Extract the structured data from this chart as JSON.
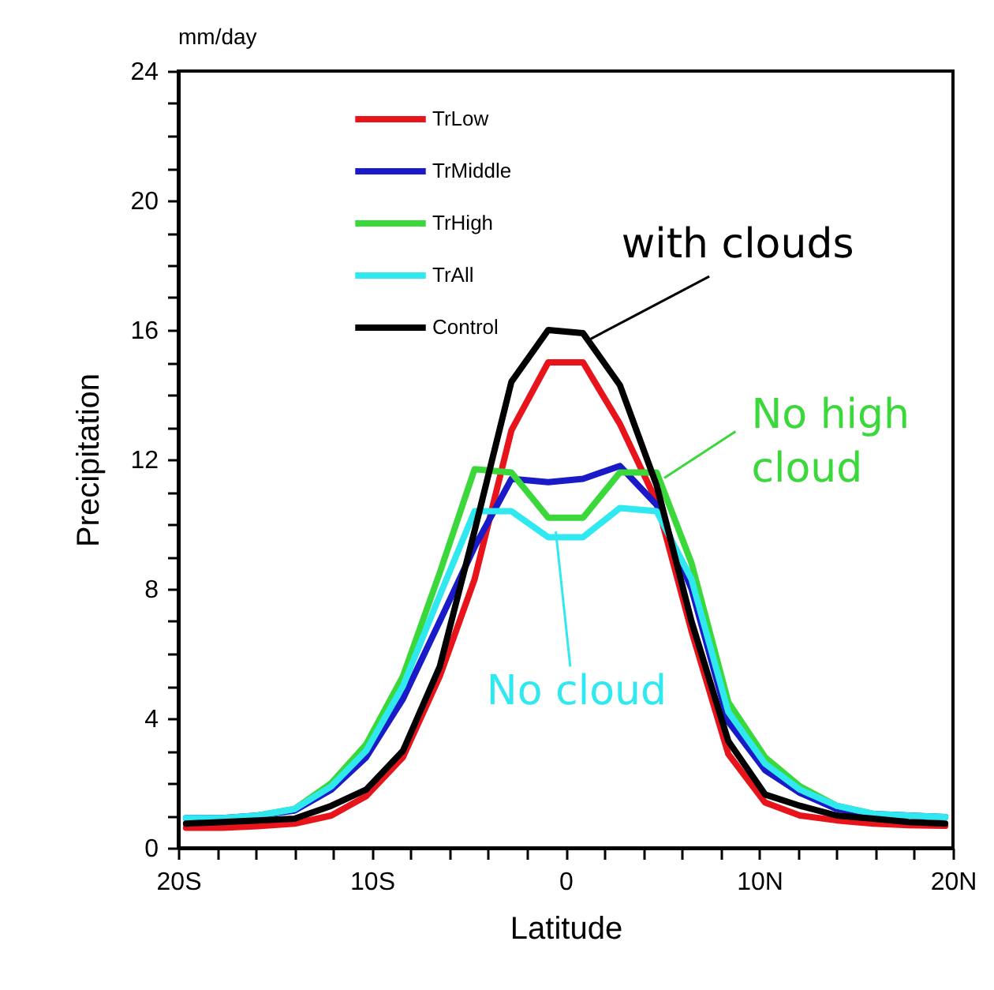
{
  "chart_data": {
    "type": "line",
    "xlabel": "Latitude",
    "ylabel": "Precipitation",
    "annotations": [
      "mm/day",
      {
        "text": "with clouds",
        "x": 0.9,
        "y": 15.9
      },
      {
        "text": "No high cloud",
        "x": 4.7,
        "y": 11.6
      },
      {
        "text": "No cloud",
        "x": -0.9,
        "y": 9.6
      }
    ],
    "x": [
      -19.6,
      -17.7,
      -15.9,
      -14.0,
      -12.1,
      -10.3,
      -8.4,
      -6.5,
      -4.7,
      -2.8,
      -0.9,
      0.9,
      2.8,
      4.7,
      6.5,
      8.4,
      10.3,
      12.1,
      14.0,
      15.9,
      17.7,
      19.6
    ],
    "series": [
      {
        "name": "TrLow",
        "color": "#e8141c",
        "values": [
          0.62,
          0.62,
          0.67,
          0.75,
          1.0,
          1.6,
          2.8,
          5.3,
          8.3,
          12.9,
          15.0,
          15.0,
          13.1,
          10.7,
          6.7,
          2.9,
          1.4,
          1.0,
          0.85,
          0.75,
          0.7,
          0.68
        ]
      },
      {
        "name": "TrMiddle",
        "color": "#1a1ac8",
        "values": [
          0.92,
          0.92,
          1.0,
          1.15,
          1.8,
          2.8,
          4.6,
          7.0,
          9.3,
          11.4,
          11.3,
          11.4,
          11.8,
          10.6,
          8.0,
          3.9,
          2.4,
          1.7,
          1.2,
          1.05,
          1.0,
          0.95
        ]
      },
      {
        "name": "TrHigh",
        "color": "#3ad83a",
        "values": [
          null,
          null,
          1.0,
          1.2,
          2.0,
          3.2,
          5.3,
          8.5,
          11.7,
          11.6,
          10.2,
          10.2,
          11.6,
          11.6,
          8.8,
          4.5,
          2.8,
          1.9,
          1.3,
          1.05,
          null,
          null
        ]
      },
      {
        "name": "TrAll",
        "color": "#30e8f0",
        "values": [
          0.92,
          0.92,
          1.0,
          1.2,
          1.9,
          3.0,
          5.0,
          7.8,
          10.4,
          10.4,
          9.6,
          9.6,
          10.5,
          10.4,
          8.3,
          4.2,
          2.6,
          1.8,
          1.3,
          1.05,
          1.0,
          0.95
        ]
      },
      {
        "name": "Control",
        "color": "#000000",
        "values": [
          0.75,
          0.8,
          0.85,
          0.9,
          1.3,
          1.8,
          3.0,
          5.6,
          9.8,
          14.4,
          16.0,
          15.9,
          14.3,
          11.2,
          7.0,
          3.3,
          1.65,
          1.3,
          1.0,
          0.9,
          0.8,
          0.75
        ]
      }
    ],
    "xlim": [
      -20,
      20
    ],
    "xticks": [
      {
        "value": -20,
        "label": "20S"
      },
      {
        "value": -18,
        "label": null
      },
      {
        "value": -16,
        "label": null
      },
      {
        "value": -14,
        "label": null
      },
      {
        "value": -12,
        "label": null
      },
      {
        "value": -10,
        "label": "10S"
      },
      {
        "value": -8,
        "label": null
      },
      {
        "value": -6,
        "label": null
      },
      {
        "value": -4,
        "label": null
      },
      {
        "value": -2,
        "label": null
      },
      0,
      {
        "value": 2,
        "label": null
      },
      {
        "value": 4,
        "label": null
      },
      {
        "value": 6,
        "label": null
      },
      {
        "value": 8,
        "label": null
      },
      {
        "value": 10,
        "label": "10N"
      },
      {
        "value": 12,
        "label": null
      },
      {
        "value": 14,
        "label": null
      },
      {
        "value": 16,
        "label": null
      },
      {
        "value": 18,
        "label": null
      },
      {
        "value": 20,
        "label": "20N"
      }
    ],
    "ylim": [
      0,
      24
    ],
    "yticks": [
      0,
      {
        "value": 1,
        "label": null
      },
      {
        "value": 2,
        "label": null
      },
      {
        "value": 3,
        "label": null
      },
      4,
      {
        "value": 5,
        "label": null
      },
      {
        "value": 6,
        "label": null
      },
      {
        "value": 7,
        "label": null
      },
      8,
      {
        "value": 9,
        "label": null
      },
      {
        "value": 10,
        "label": null
      },
      {
        "value": 11,
        "label": null
      },
      12,
      {
        "value": 13,
        "label": null
      },
      {
        "value": 14,
        "label": null
      },
      {
        "value": 15,
        "label": null
      },
      16,
      {
        "value": 17,
        "label": null
      },
      {
        "value": 18,
        "label": null
      },
      {
        "value": 19,
        "label": null
      },
      20,
      {
        "value": 21,
        "label": null
      },
      {
        "value": 22,
        "label": null
      },
      {
        "value": 23,
        "label": null
      },
      24
    ],
    "legend": "top left",
    "grid": false,
    "marker": "none",
    "line_style": "solid"
  }
}
